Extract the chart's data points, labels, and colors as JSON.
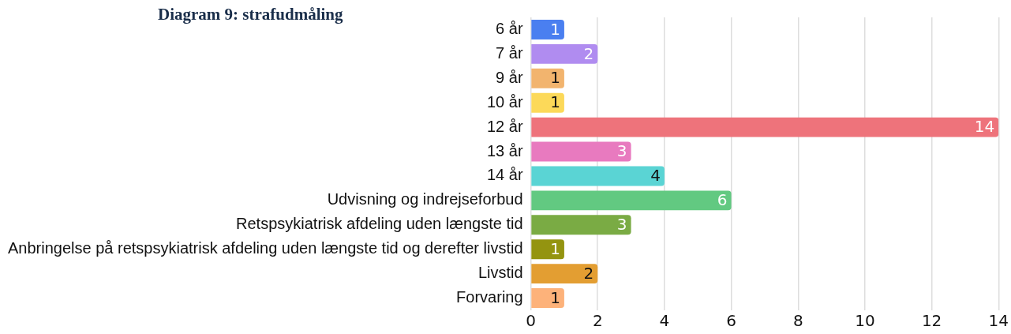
{
  "chart_data": {
    "type": "bar",
    "orientation": "horizontal",
    "title": "Diagram 9: strafudmåling",
    "categories": [
      "6 år",
      "7 år",
      "9 år",
      "10 år",
      "12 år",
      "13 år",
      "14 år",
      "Udvisning og indrejseforbud",
      "Retspsykiatrisk afdeling uden længste tid",
      "Anbringelse på retspsykiatrisk afdeling uden længste tid og derefter livstid",
      "Livstid",
      "Forvaring"
    ],
    "values": [
      1,
      2,
      1,
      1,
      14,
      3,
      4,
      6,
      3,
      1,
      2,
      1
    ],
    "colors": [
      "#4a7ff0",
      "#b08cf0",
      "#f2b46e",
      "#fcd959",
      "#ee737b",
      "#e87abf",
      "#5ad4d4",
      "#62c981",
      "#7aab44",
      "#949410",
      "#e39e32",
      "#fdb27a"
    ],
    "xlim": [
      0,
      14
    ],
    "xticks": [
      0,
      2,
      4,
      6,
      8,
      10,
      12,
      14
    ],
    "grid": "x",
    "legend": false,
    "data_labels": true
  }
}
